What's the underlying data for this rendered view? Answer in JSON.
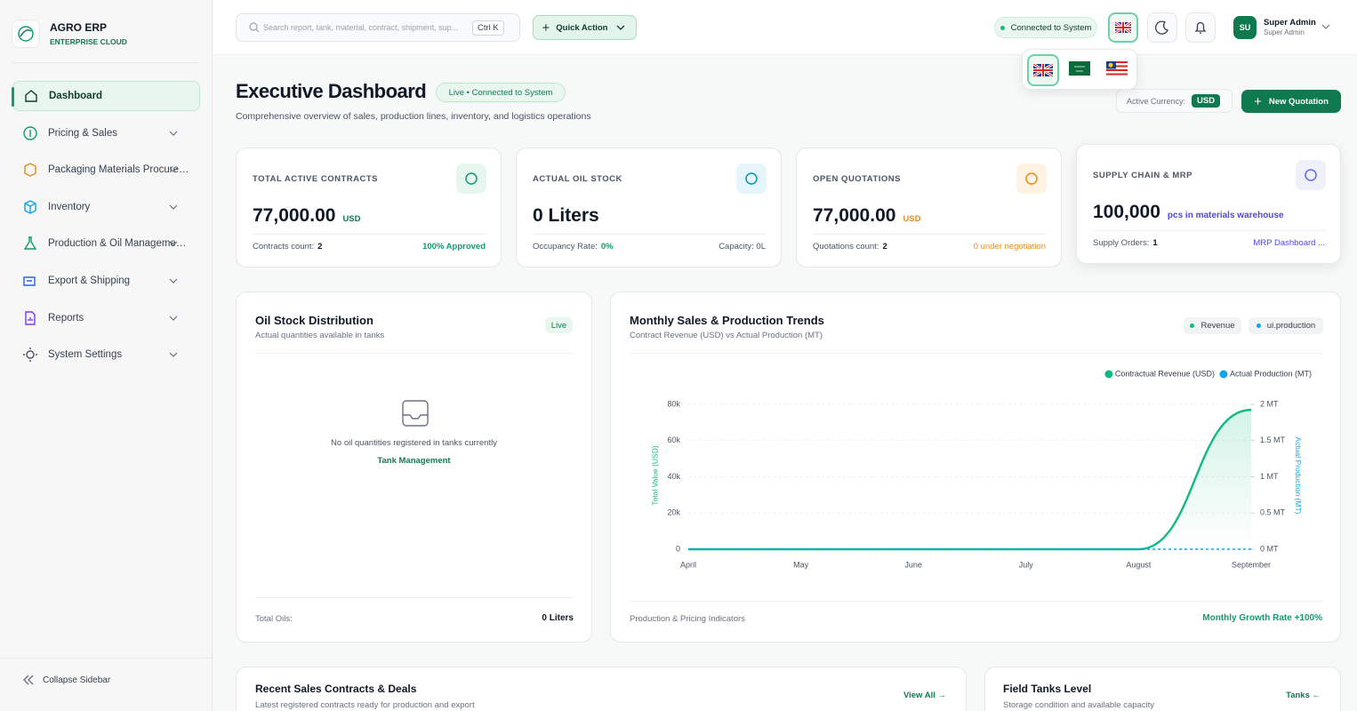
{
  "sidebar": {
    "brand_name": "AGRO ERP",
    "brand_sub": "ENTERPRISE CLOUD",
    "nav": [
      "Dashboard",
      "Pricing & Sales",
      "Packaging Materials Procure…",
      "Inventory",
      "Production & Oil Manageme…",
      "Export & Shipping",
      "Reports",
      "System Settings"
    ],
    "collapse": "Collapse Sidebar"
  },
  "topbar": {
    "search_placeholder": "Search report, tank, material, contract, shipment, sup...",
    "shortcut": "Ctrl K",
    "quick_action": "Quick Action",
    "status": "Connected to System",
    "user_initials": "SU",
    "user_name": "Super Admin",
    "user_role": "Super Admin"
  },
  "header": {
    "title": "Executive Dashboard",
    "badge": "Live • Connected to System",
    "subtitle": "Comprehensive overview of sales, production lines, inventory, and logistics operations",
    "currency_label": "Active Currency:",
    "currency": "USD",
    "new_quotation": "New Quotation"
  },
  "kpis": [
    {
      "label": "TOTAL ACTIVE CONTRACTS",
      "value": "77,000.00",
      "unit": "USD",
      "left_label": "Contracts count:",
      "left_value": "2",
      "right": "100% Approved"
    },
    {
      "label": "ACTUAL OIL STOCK",
      "value": "0 Liters",
      "left_label": "Occupancy Rate:",
      "left_value": "0%",
      "right": "Capacity: 0L"
    },
    {
      "label": "OPEN QUOTATIONS",
      "value": "77,000.00",
      "unit": "USD",
      "left_label": "Quotations count:",
      "left_value": "2",
      "right": "0 under negotiation"
    },
    {
      "label": "SUPPLY CHAIN & MRP",
      "value": "100,000",
      "unit": "pcs in materials warehouse",
      "left_label": "Supply Orders:",
      "left_value": "1",
      "right": "MRP Dashboard ..."
    }
  ],
  "oil_card": {
    "title": "Oil Stock Distribution",
    "subtitle": "Actual quantities available in tanks",
    "badge": "Live",
    "empty": "No oil quantities registered in tanks currently",
    "link": "Tank Management",
    "footer_label": "Total Oils:",
    "footer_value": "0 Liters"
  },
  "trend_card": {
    "title": "Monthly Sales & Production Trends",
    "subtitle": "Contract Revenue (USD) vs Actual Production (MT)",
    "chips": [
      "Revenue",
      "ui.production"
    ],
    "footer_left": "Production & Pricing Indicators",
    "footer_right": "Monthly Growth Rate +100%"
  },
  "chart_data": {
    "type": "line",
    "categories": [
      "April",
      "May",
      "June",
      "July",
      "August",
      "September"
    ],
    "series": [
      {
        "name": "Contractual Revenue (USD)",
        "color": "#10b981",
        "values": [
          0,
          0,
          0,
          0,
          0,
          77000
        ]
      },
      {
        "name": "Actual Production (MT)",
        "color": "#0ea5e9",
        "axis": "y2",
        "values": [
          0,
          0,
          0,
          0,
          0,
          0
        ]
      }
    ],
    "ylabel": "Total Value (USD)",
    "y2label": "Actual Production (MT)",
    "ylim": [
      0,
      80000
    ],
    "yticks": [
      0,
      {
        "value": 20000,
        "label": "20k"
      },
      {
        "value": 40000,
        "label": "40k"
      },
      {
        "value": 60000,
        "label": "60k"
      },
      {
        "value": 80000,
        "label": "80k"
      }
    ],
    "y2lim": [
      0,
      2
    ],
    "y2ticks": [
      {
        "value": 0,
        "label": "0 MT"
      },
      {
        "value": 0.5,
        "label": "0.5 MT"
      },
      {
        "value": 1,
        "label": "1 MT"
      },
      {
        "value": 1.5,
        "label": "1.5 MT"
      },
      {
        "value": 2,
        "label": "2 MT"
      }
    ],
    "grid": true,
    "legend": "top-right"
  },
  "bottom": [
    {
      "title": "Recent Sales Contracts & Deals",
      "subtitle": "Latest registered contracts ready for production and export",
      "link": "View All →"
    },
    {
      "title": "Field Tanks Level",
      "subtitle": "Storage condition and available capacity",
      "link": "Tanks ←"
    }
  ]
}
